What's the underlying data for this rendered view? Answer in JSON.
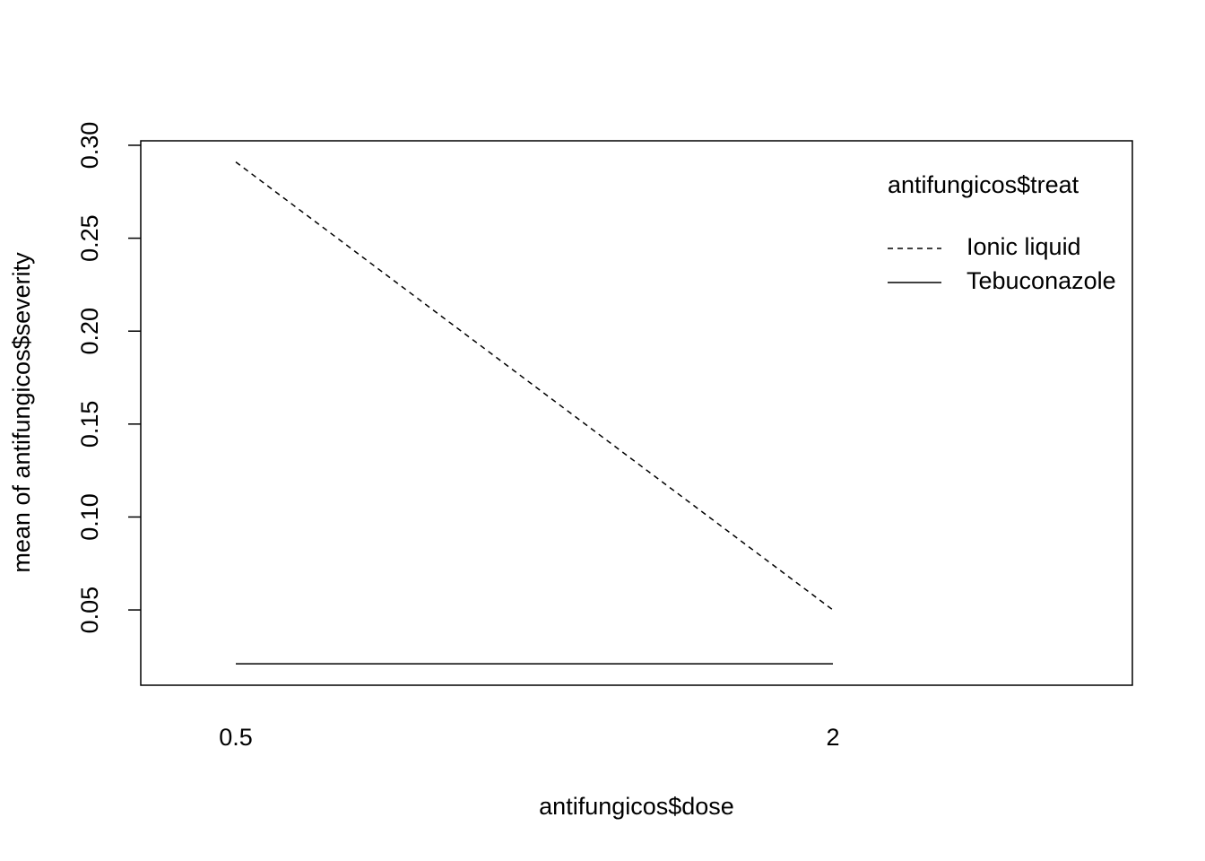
{
  "chart_data": {
    "type": "line",
    "x_label": "antifungicos$dose",
    "y_label": "mean of  antifungicos$severity",
    "categories": [
      "0.5",
      "2"
    ],
    "series": [
      {
        "name": "Ionic liquid",
        "color": "#000000",
        "linestyle": "dashed",
        "values": [
          0.291,
          0.05
        ]
      },
      {
        "name": "Tebuconazole",
        "color": "#000000",
        "linestyle": "solid",
        "values": [
          0.021,
          0.021
        ]
      }
    ],
    "legend_title": "antifungicos$treat",
    "legend_position": "top-right",
    "ylim": [
      0.0095,
      0.3024
    ],
    "yticks": [
      {
        "value": 0.05,
        "label": "0.05"
      },
      {
        "value": 0.1,
        "label": "0.10"
      },
      {
        "value": 0.15,
        "label": "0.15"
      },
      {
        "value": 0.2,
        "label": "0.20"
      },
      {
        "value": 0.25,
        "label": "0.25"
      },
      {
        "value": 0.3,
        "label": "0.30"
      }
    ],
    "grid": false
  }
}
